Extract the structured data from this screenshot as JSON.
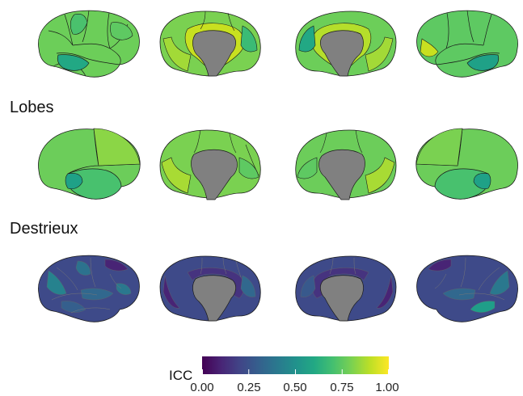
{
  "sections": [
    {
      "title": "",
      "palette": "dk"
    },
    {
      "title": "Lobes",
      "palette": "lobes"
    },
    {
      "title": "Destrieux",
      "palette": "destrieux"
    }
  ],
  "legend": {
    "title": "ICC",
    "ticks": [
      "0.00",
      "0.25",
      "0.50",
      "0.75",
      "1.00"
    ],
    "range": [
      0,
      1
    ],
    "colormap": "viridis"
  },
  "colors": {
    "medial_wall": "#808080",
    "outline": "#1a1a1a",
    "dk_palette": [
      "#6cce59",
      "#5ec962",
      "#7ad151",
      "#4ac16d",
      "#8fd744",
      "#a2da37",
      "#3bbb75",
      "#22a884",
      "#c8e020",
      "#b5de2b",
      "#54c568"
    ],
    "lobe_palette": [
      "#6ccd5a",
      "#7ad151",
      "#5ec962",
      "#8bd646",
      "#1fa187",
      "#48c16e",
      "#a8db34",
      "#3bbb75"
    ],
    "destrieux_palette": [
      "#3e4a89",
      "#38598c",
      "#31688e",
      "#433e85",
      "#2c728e",
      "#482475",
      "#26828e",
      "#46337f",
      "#355f8d",
      "#1f9e89",
      "#414487",
      "#2a788e"
    ]
  }
}
